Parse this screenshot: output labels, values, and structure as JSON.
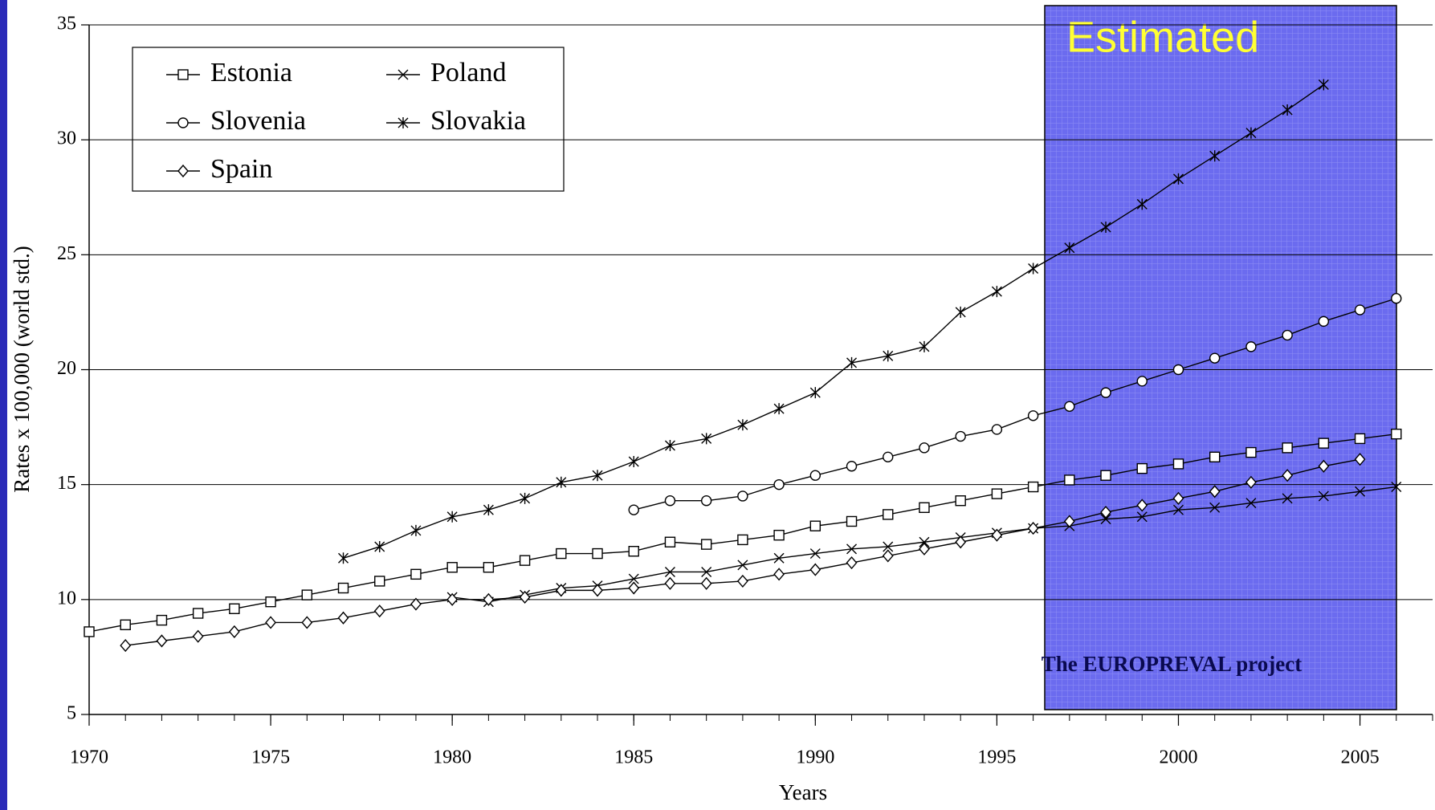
{
  "chart_data": {
    "type": "line",
    "x_label": "Years",
    "y_label": "Rates x 100,000 (world std.)",
    "annotations": [
      "Estimated",
      "The EUROPREVAL project"
    ],
    "x": [
      1970,
      1971,
      1972,
      1973,
      1974,
      1975,
      1976,
      1977,
      1978,
      1979,
      1980,
      1981,
      1982,
      1983,
      1984,
      1985,
      1986,
      1987,
      1988,
      1989,
      1990,
      1991,
      1992,
      1993,
      1994,
      1995,
      1996,
      1997,
      1998,
      1999,
      2000,
      2001,
      2002,
      2003,
      2004,
      2005,
      2006
    ],
    "series": [
      {
        "name": "Estonia",
        "color": "#000000",
        "marker": "square",
        "values": [
          8.6,
          8.9,
          9.1,
          9.4,
          9.6,
          9.9,
          10.2,
          10.5,
          10.8,
          11.1,
          11.4,
          11.4,
          11.7,
          12.0,
          12.0,
          12.1,
          12.5,
          12.4,
          12.6,
          12.8,
          13.2,
          13.4,
          13.7,
          14.0,
          14.3,
          14.6,
          14.9,
          15.2,
          15.4,
          15.7,
          15.9,
          16.2,
          16.4,
          16.6,
          16.8,
          17.0,
          17.2
        ]
      },
      {
        "name": "Poland",
        "color": "#000000",
        "marker": "x",
        "values": [
          null,
          null,
          null,
          null,
          null,
          null,
          null,
          null,
          null,
          null,
          10.1,
          9.9,
          10.2,
          10.5,
          10.6,
          10.9,
          11.2,
          11.2,
          11.5,
          11.8,
          12.0,
          12.2,
          12.3,
          12.5,
          12.7,
          12.9,
          13.1,
          13.2,
          13.5,
          13.6,
          13.9,
          14.0,
          14.2,
          14.4,
          14.5,
          14.7,
          14.9
        ]
      },
      {
        "name": "Slovenia",
        "color": "#000000",
        "marker": "circle",
        "values": [
          null,
          null,
          null,
          null,
          null,
          null,
          null,
          null,
          null,
          null,
          null,
          null,
          null,
          null,
          null,
          13.9,
          14.3,
          14.3,
          14.5,
          15.0,
          15.4,
          15.8,
          16.2,
          16.6,
          17.1,
          17.4,
          18.0,
          18.4,
          19.0,
          19.5,
          20.0,
          20.5,
          21.0,
          21.5,
          22.1,
          22.6,
          23.1
        ]
      },
      {
        "name": "Slovakia",
        "color": "#000000",
        "marker": "asterisk",
        "values": [
          null,
          null,
          null,
          null,
          null,
          null,
          null,
          11.8,
          12.3,
          13.0,
          13.6,
          13.9,
          14.4,
          15.1,
          15.4,
          16.0,
          16.7,
          17.0,
          17.6,
          18.3,
          19.0,
          20.3,
          20.6,
          21.0,
          22.5,
          23.4,
          24.4,
          25.3,
          26.2,
          27.2,
          28.3,
          29.3,
          30.3,
          31.3,
          32.4,
          null,
          null
        ]
      },
      {
        "name": "Spain",
        "color": "#000000",
        "marker": "diamond",
        "values": [
          null,
          8.0,
          8.2,
          8.4,
          8.6,
          9.0,
          9.0,
          9.2,
          9.5,
          9.8,
          10.0,
          10.0,
          10.1,
          10.4,
          10.4,
          10.5,
          10.7,
          10.7,
          10.8,
          11.1,
          11.3,
          11.6,
          11.9,
          12.2,
          12.5,
          12.8,
          13.1,
          13.4,
          13.8,
          14.1,
          14.4,
          14.7,
          15.1,
          15.4,
          15.8,
          16.1,
          null
        ]
      }
    ],
    "xlim": [
      1970,
      2007
    ],
    "xticks": [
      1970,
      1975,
      1980,
      1985,
      1990,
      1995,
      2000,
      2005
    ],
    "ylim": [
      5,
      35
    ],
    "yticks": [
      5,
      10,
      15,
      20,
      25,
      30,
      35
    ],
    "grid": true,
    "legend": "upper left"
  }
}
